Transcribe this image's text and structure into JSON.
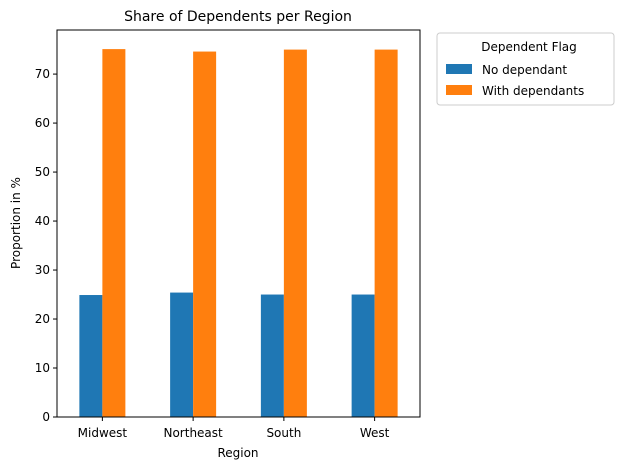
{
  "chart_data": {
    "type": "bar",
    "title": "Share of Dependents per Region",
    "xlabel": "Region",
    "ylabel": "Proportion in %",
    "categories": [
      "Midwest",
      "Northeast",
      "South",
      "West"
    ],
    "series": [
      {
        "name": "No dependant",
        "values": [
          24.9,
          25.4,
          25.0,
          25.0
        ],
        "color": "#1f77b4"
      },
      {
        "name": "With dependants",
        "values": [
          75.1,
          74.6,
          75.0,
          75.0
        ],
        "color": "#ff7f0e"
      }
    ],
    "ylim": [
      0,
      79
    ],
    "yticks": [
      0,
      10,
      20,
      30,
      40,
      50,
      60,
      70
    ],
    "grid": false,
    "legend": {
      "title": "Dependent Flag",
      "placement": "outside-top-right"
    }
  }
}
